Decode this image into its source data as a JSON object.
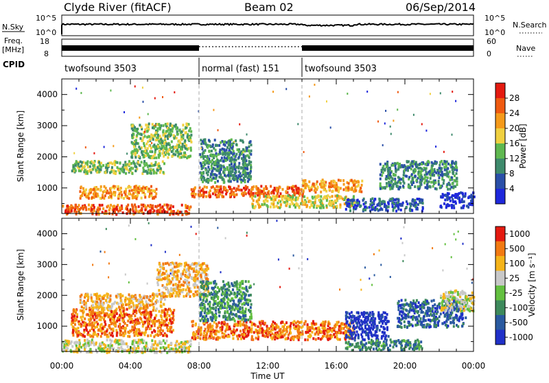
{
  "header": {
    "station": "Clyde River (fitACF)",
    "beam": "Beam 02",
    "date": "06/Sep/2014"
  },
  "top_panels": {
    "nsky_label": "N.Sky",
    "nsky_ticks": [
      "10^5",
      "10^0"
    ],
    "nsearch_label": "N.Search",
    "nsearch_ticks": [
      "10^5",
      "10^0"
    ],
    "freq_label_1": "Freq.",
    "freq_label_2": "[MHz]",
    "freq_ticks": [
      "18",
      "8"
    ],
    "nave_label": "Nave",
    "nave_ticks": [
      "60",
      "0"
    ],
    "cpid_label": "CPID",
    "cpid_segments": [
      {
        "label": "twofsound 3503",
        "start_hour": 0,
        "end_hour": 8
      },
      {
        "label": "normal (fast) 151",
        "start_hour": 8,
        "end_hour": 14
      },
      {
        "label": "twofsound 3503",
        "start_hour": 14,
        "end_hour": 24
      }
    ]
  },
  "chart_data": [
    {
      "type": "heatmap",
      "name": "power",
      "ylabel": "Slant Range [km]",
      "yticks": [
        1000,
        2000,
        3000,
        4000
      ],
      "ylim": [
        180,
        4500
      ],
      "xlim": [
        0,
        24
      ],
      "colorbar_label": "Power [dB]",
      "colorbar_ticks": [
        4,
        8,
        12,
        16,
        20,
        24,
        28
      ],
      "colors": [
        "#1e28dc",
        "#2a4fa8",
        "#3e8a6c",
        "#5fb850",
        "#f0d040",
        "#f59a1a",
        "#ef5a10",
        "#e41a10"
      ],
      "bands": [
        {
          "x0": 0.0,
          "x1": 7.5,
          "y0": 180,
          "y1": 500,
          "level": 6
        },
        {
          "x0": 1.0,
          "x1": 5.5,
          "y0": 700,
          "y1": 1100,
          "level": 5
        },
        {
          "x0": 0.5,
          "x1": 6.0,
          "y0": 1500,
          "y1": 1900,
          "level": 3
        },
        {
          "x0": 4.0,
          "x1": 7.5,
          "y0": 2000,
          "y1": 3100,
          "level": 3
        },
        {
          "x0": 7.5,
          "x1": 14.0,
          "y0": 750,
          "y1": 1100,
          "level": 6
        },
        {
          "x0": 8.0,
          "x1": 11.0,
          "y0": 1200,
          "y1": 2600,
          "level": 2
        },
        {
          "x0": 11.0,
          "x1": 17.0,
          "y0": 400,
          "y1": 800,
          "level": 4
        },
        {
          "x0": 14.0,
          "x1": 17.5,
          "y0": 900,
          "y1": 1300,
          "level": 5
        },
        {
          "x0": 16.5,
          "x1": 21.0,
          "y0": 300,
          "y1": 700,
          "level": 1
        },
        {
          "x0": 18.5,
          "x1": 23.0,
          "y0": 1000,
          "y1": 1900,
          "level": 2
        },
        {
          "x0": 22.0,
          "x1": 24.0,
          "y0": 400,
          "y1": 900,
          "level": 0
        }
      ]
    },
    {
      "type": "heatmap",
      "name": "velocity",
      "ylabel": "Slant Range [km]",
      "yticks": [
        1000,
        2000,
        3000,
        4000
      ],
      "ylim": [
        180,
        4500
      ],
      "xlim": [
        0,
        24
      ],
      "xlabel": "Time UT",
      "xticks": [
        "00:00",
        "04:00",
        "08:00",
        "12:00",
        "16:00",
        "20:00",
        "00:00"
      ],
      "colorbar_label": "Velocity [m s⁻¹]",
      "colorbar_ticks": [
        1000,
        500,
        100,
        25,
        -25,
        -100,
        -500,
        -1000
      ],
      "colors": [
        "#2030c8",
        "#2a5aa0",
        "#3e8a5c",
        "#63c040",
        "#c8c8c8",
        "#f5b41a",
        "#f27a12",
        "#e41a10"
      ],
      "bands": [
        {
          "x0": 0.0,
          "x1": 7.5,
          "y0": 180,
          "y1": 600,
          "level": 4
        },
        {
          "x0": 0.5,
          "x1": 6.5,
          "y0": 700,
          "y1": 1600,
          "level": 6
        },
        {
          "x0": 1.0,
          "x1": 6.0,
          "y0": 1600,
          "y1": 2100,
          "level": 5
        },
        {
          "x0": 5.5,
          "x1": 8.5,
          "y0": 2000,
          "y1": 3100,
          "level": 5
        },
        {
          "x0": 7.5,
          "x1": 17.0,
          "y0": 600,
          "y1": 1200,
          "level": 6
        },
        {
          "x0": 8.0,
          "x1": 11.0,
          "y0": 1200,
          "y1": 2500,
          "level": 2
        },
        {
          "x0": 16.5,
          "x1": 19.0,
          "y0": 600,
          "y1": 1500,
          "level": 0
        },
        {
          "x0": 16.5,
          "x1": 21.0,
          "y0": 250,
          "y1": 600,
          "level": 2
        },
        {
          "x0": 19.5,
          "x1": 23.5,
          "y0": 1000,
          "y1": 1900,
          "level": 1
        },
        {
          "x0": 22.0,
          "x1": 24.0,
          "y0": 1500,
          "y1": 2200,
          "level": 4
        }
      ]
    }
  ]
}
